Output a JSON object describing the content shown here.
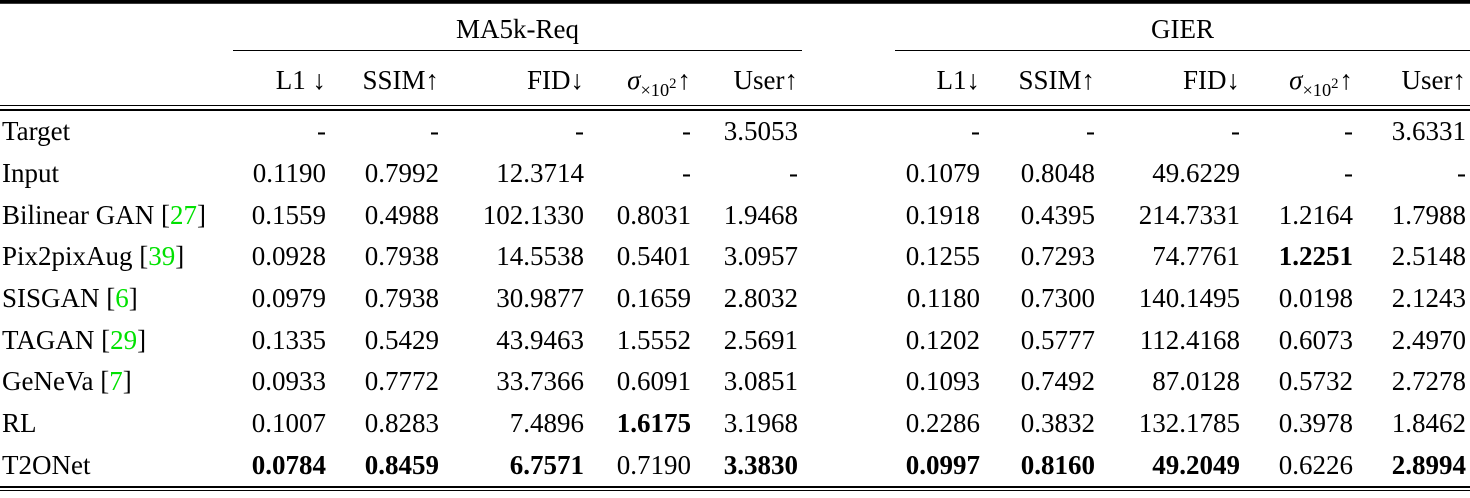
{
  "colors": {
    "citation_green": "#00e100",
    "text": "#000000",
    "rule": "#000000"
  },
  "table": {
    "row_label_header": "",
    "groups": [
      {
        "label": "MA5k-Req",
        "columns": [
          {
            "type": "text",
            "label": "L1 ↓"
          },
          {
            "type": "text",
            "label": "SSIM↑"
          },
          {
            "type": "text",
            "label": "FID↓"
          },
          {
            "type": "sigma",
            "base": "σ",
            "sub": "×10",
            "sup": "2",
            "arrow": "↑"
          },
          {
            "type": "text",
            "label": "User↑"
          }
        ]
      },
      {
        "label": "GIER",
        "columns": [
          {
            "type": "text",
            "label": "L1↓"
          },
          {
            "type": "text",
            "label": "SSIM↑"
          },
          {
            "type": "text",
            "label": "FID↓"
          },
          {
            "type": "sigma",
            "base": "σ",
            "sub": "×10",
            "sup": "2",
            "arrow": "↑"
          },
          {
            "type": "text",
            "label": "User↑"
          }
        ]
      }
    ],
    "rows": [
      {
        "label": "Target",
        "cite": null,
        "ma5k": [
          "-",
          "-",
          "-",
          "-",
          "3.5053"
        ],
        "ma5k_bold": [
          false,
          false,
          false,
          false,
          false
        ],
        "gier": [
          "-",
          "-",
          "-",
          "-",
          "3.6331"
        ],
        "gier_bold": [
          false,
          false,
          false,
          false,
          false
        ]
      },
      {
        "label": "Input",
        "cite": null,
        "ma5k": [
          "0.1190",
          "0.7992",
          "12.3714",
          "-",
          "-"
        ],
        "ma5k_bold": [
          false,
          false,
          false,
          false,
          false
        ],
        "gier": [
          "0.1079",
          "0.8048",
          "49.6229",
          "-",
          "-"
        ],
        "gier_bold": [
          false,
          false,
          false,
          false,
          false
        ]
      },
      {
        "label": "Bilinear GAN",
        "cite": "27",
        "ma5k": [
          "0.1559",
          "0.4988",
          "102.1330",
          "0.8031",
          "1.9468"
        ],
        "ma5k_bold": [
          false,
          false,
          false,
          false,
          false
        ],
        "gier": [
          "0.1918",
          "0.4395",
          "214.7331",
          "1.2164",
          "1.7988"
        ],
        "gier_bold": [
          false,
          false,
          false,
          false,
          false
        ]
      },
      {
        "label": "Pix2pixAug",
        "cite": "39",
        "ma5k": [
          "0.0928",
          "0.7938",
          "14.5538",
          "0.5401",
          "3.0957"
        ],
        "ma5k_bold": [
          false,
          false,
          false,
          false,
          false
        ],
        "gier": [
          "0.1255",
          "0.7293",
          "74.7761",
          "1.2251",
          "2.5148"
        ],
        "gier_bold": [
          false,
          false,
          false,
          true,
          false
        ]
      },
      {
        "label": "SISGAN",
        "cite": "6",
        "ma5k": [
          "0.0979",
          "0.7938",
          "30.9877",
          "0.1659",
          "2.8032"
        ],
        "ma5k_bold": [
          false,
          false,
          false,
          false,
          false
        ],
        "gier": [
          "0.1180",
          "0.7300",
          "140.1495",
          "0.0198",
          "2.1243"
        ],
        "gier_bold": [
          false,
          false,
          false,
          false,
          false
        ]
      },
      {
        "label": "TAGAN",
        "cite": "29",
        "ma5k": [
          "0.1335",
          "0.5429",
          "43.9463",
          "1.5552",
          "2.5691"
        ],
        "ma5k_bold": [
          false,
          false,
          false,
          false,
          false
        ],
        "gier": [
          "0.1202",
          "0.5777",
          "112.4168",
          "0.6073",
          "2.4970"
        ],
        "gier_bold": [
          false,
          false,
          false,
          false,
          false
        ]
      },
      {
        "label": "GeNeVa",
        "cite": "7",
        "ma5k": [
          "0.0933",
          "0.7772",
          "33.7366",
          "0.6091",
          "3.0851"
        ],
        "ma5k_bold": [
          false,
          false,
          false,
          false,
          false
        ],
        "gier": [
          "0.1093",
          "0.7492",
          "87.0128",
          "0.5732",
          "2.7278"
        ],
        "gier_bold": [
          false,
          false,
          false,
          false,
          false
        ]
      },
      {
        "label": "RL",
        "cite": null,
        "ma5k": [
          "0.1007",
          "0.8283",
          "7.4896",
          "1.6175",
          "3.1968"
        ],
        "ma5k_bold": [
          false,
          false,
          false,
          true,
          false
        ],
        "gier": [
          "0.2286",
          "0.3832",
          "132.1785",
          "0.3978",
          "1.8462"
        ],
        "gier_bold": [
          false,
          false,
          false,
          false,
          false
        ]
      },
      {
        "label": "T2ONet",
        "cite": null,
        "ma5k": [
          "0.0784",
          "0.8459",
          "6.7571",
          "0.7190",
          "3.3830"
        ],
        "ma5k_bold": [
          true,
          true,
          true,
          false,
          true
        ],
        "gier": [
          "0.0997",
          "0.8160",
          "49.2049",
          "0.6226",
          "2.8994"
        ],
        "gier_bold": [
          true,
          true,
          true,
          false,
          true
        ]
      }
    ]
  }
}
